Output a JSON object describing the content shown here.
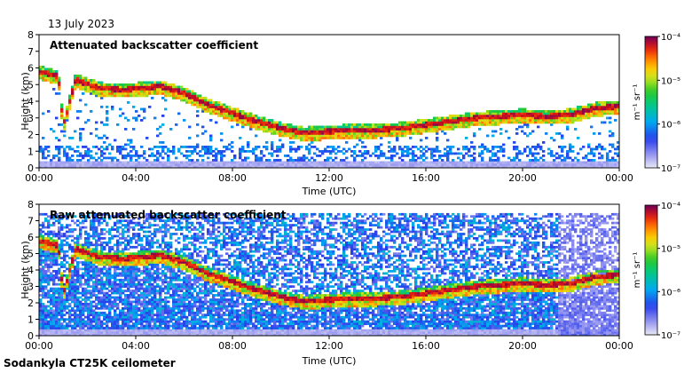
{
  "header": {
    "date": "13 July 2023"
  },
  "footer": {
    "instrument": "Sodankyla CT25K ceilometer"
  },
  "chart_data": [
    {
      "type": "heatmap",
      "title": "Attenuated backscatter coefficient",
      "xlabel": "Time (UTC)",
      "ylabel": "Height (km)",
      "x_ticks": [
        "00:00",
        "04:00",
        "08:00",
        "12:00",
        "16:00",
        "20:00",
        "00:00"
      ],
      "x_range_hours": [
        0,
        24
      ],
      "y_ticks": [
        "0",
        "1",
        "2",
        "3",
        "4",
        "5",
        "6",
        "7",
        "8"
      ],
      "ylim": [
        0,
        8
      ],
      "colorbar": {
        "unit_label": "m⁻¹ sr⁻¹",
        "tick_labels": [
          "10⁻⁴",
          "10⁻⁵",
          "10⁻⁶",
          "10⁻⁷"
        ],
        "log_range": [
          -7,
          -4
        ],
        "scale": "log"
      },
      "cloud_layer_height_km": [
        [
          0,
          5.8
        ],
        [
          0.8,
          5.5
        ],
        [
          1.0,
          2.5
        ],
        [
          1.5,
          5.3
        ],
        [
          2.5,
          4.8
        ],
        [
          3.5,
          4.7
        ],
        [
          5.0,
          4.9
        ],
        [
          6.0,
          4.5
        ],
        [
          7.0,
          3.8
        ],
        [
          8.0,
          3.3
        ],
        [
          9.0,
          2.8
        ],
        [
          10.0,
          2.4
        ],
        [
          11.0,
          2.1
        ],
        [
          12.0,
          2.2
        ],
        [
          13.0,
          2.3
        ],
        [
          14.0,
          2.3
        ],
        [
          15.0,
          2.4
        ],
        [
          16.0,
          2.6
        ],
        [
          17.0,
          2.8
        ],
        [
          18.0,
          3.0
        ],
        [
          19.0,
          3.1
        ],
        [
          20.0,
          3.2
        ],
        [
          21.0,
          3.1
        ],
        [
          22.0,
          3.2
        ],
        [
          23.0,
          3.6
        ],
        [
          24.0,
          3.7
        ]
      ],
      "background_noise": "low"
    },
    {
      "type": "heatmap",
      "title": "Raw attenuated backscatter coefficient",
      "xlabel": "Time (UTC)",
      "ylabel": "Height (km)",
      "x_ticks": [
        "00:00",
        "04:00",
        "08:00",
        "12:00",
        "16:00",
        "20:00",
        "00:00"
      ],
      "x_range_hours": [
        0,
        24
      ],
      "y_ticks": [
        "0",
        "1",
        "2",
        "3",
        "4",
        "5",
        "6",
        "7",
        "8"
      ],
      "ylim": [
        0,
        8
      ],
      "colorbar": {
        "unit_label": "m⁻¹ sr⁻¹",
        "tick_labels": [
          "10⁻⁴",
          "10⁻⁵",
          "10⁻⁶",
          "10⁻⁷"
        ],
        "log_range": [
          -7,
          -4
        ],
        "scale": "log"
      },
      "cloud_layer_height_km": [
        [
          0,
          5.8
        ],
        [
          0.8,
          5.5
        ],
        [
          1.0,
          2.5
        ],
        [
          1.5,
          5.3
        ],
        [
          2.5,
          4.8
        ],
        [
          3.5,
          4.7
        ],
        [
          5.0,
          4.9
        ],
        [
          6.0,
          4.5
        ],
        [
          7.0,
          3.8
        ],
        [
          8.0,
          3.3
        ],
        [
          9.0,
          2.8
        ],
        [
          10.0,
          2.4
        ],
        [
          11.0,
          2.1
        ],
        [
          12.0,
          2.2
        ],
        [
          13.0,
          2.3
        ],
        [
          14.0,
          2.3
        ],
        [
          15.0,
          2.4
        ],
        [
          16.0,
          2.6
        ],
        [
          17.0,
          2.8
        ],
        [
          18.0,
          3.0
        ],
        [
          19.0,
          3.1
        ],
        [
          20.0,
          3.2
        ],
        [
          21.0,
          3.1
        ],
        [
          22.0,
          3.2
        ],
        [
          23.0,
          3.6
        ],
        [
          24.0,
          3.7
        ]
      ],
      "background_noise": "high"
    }
  ]
}
